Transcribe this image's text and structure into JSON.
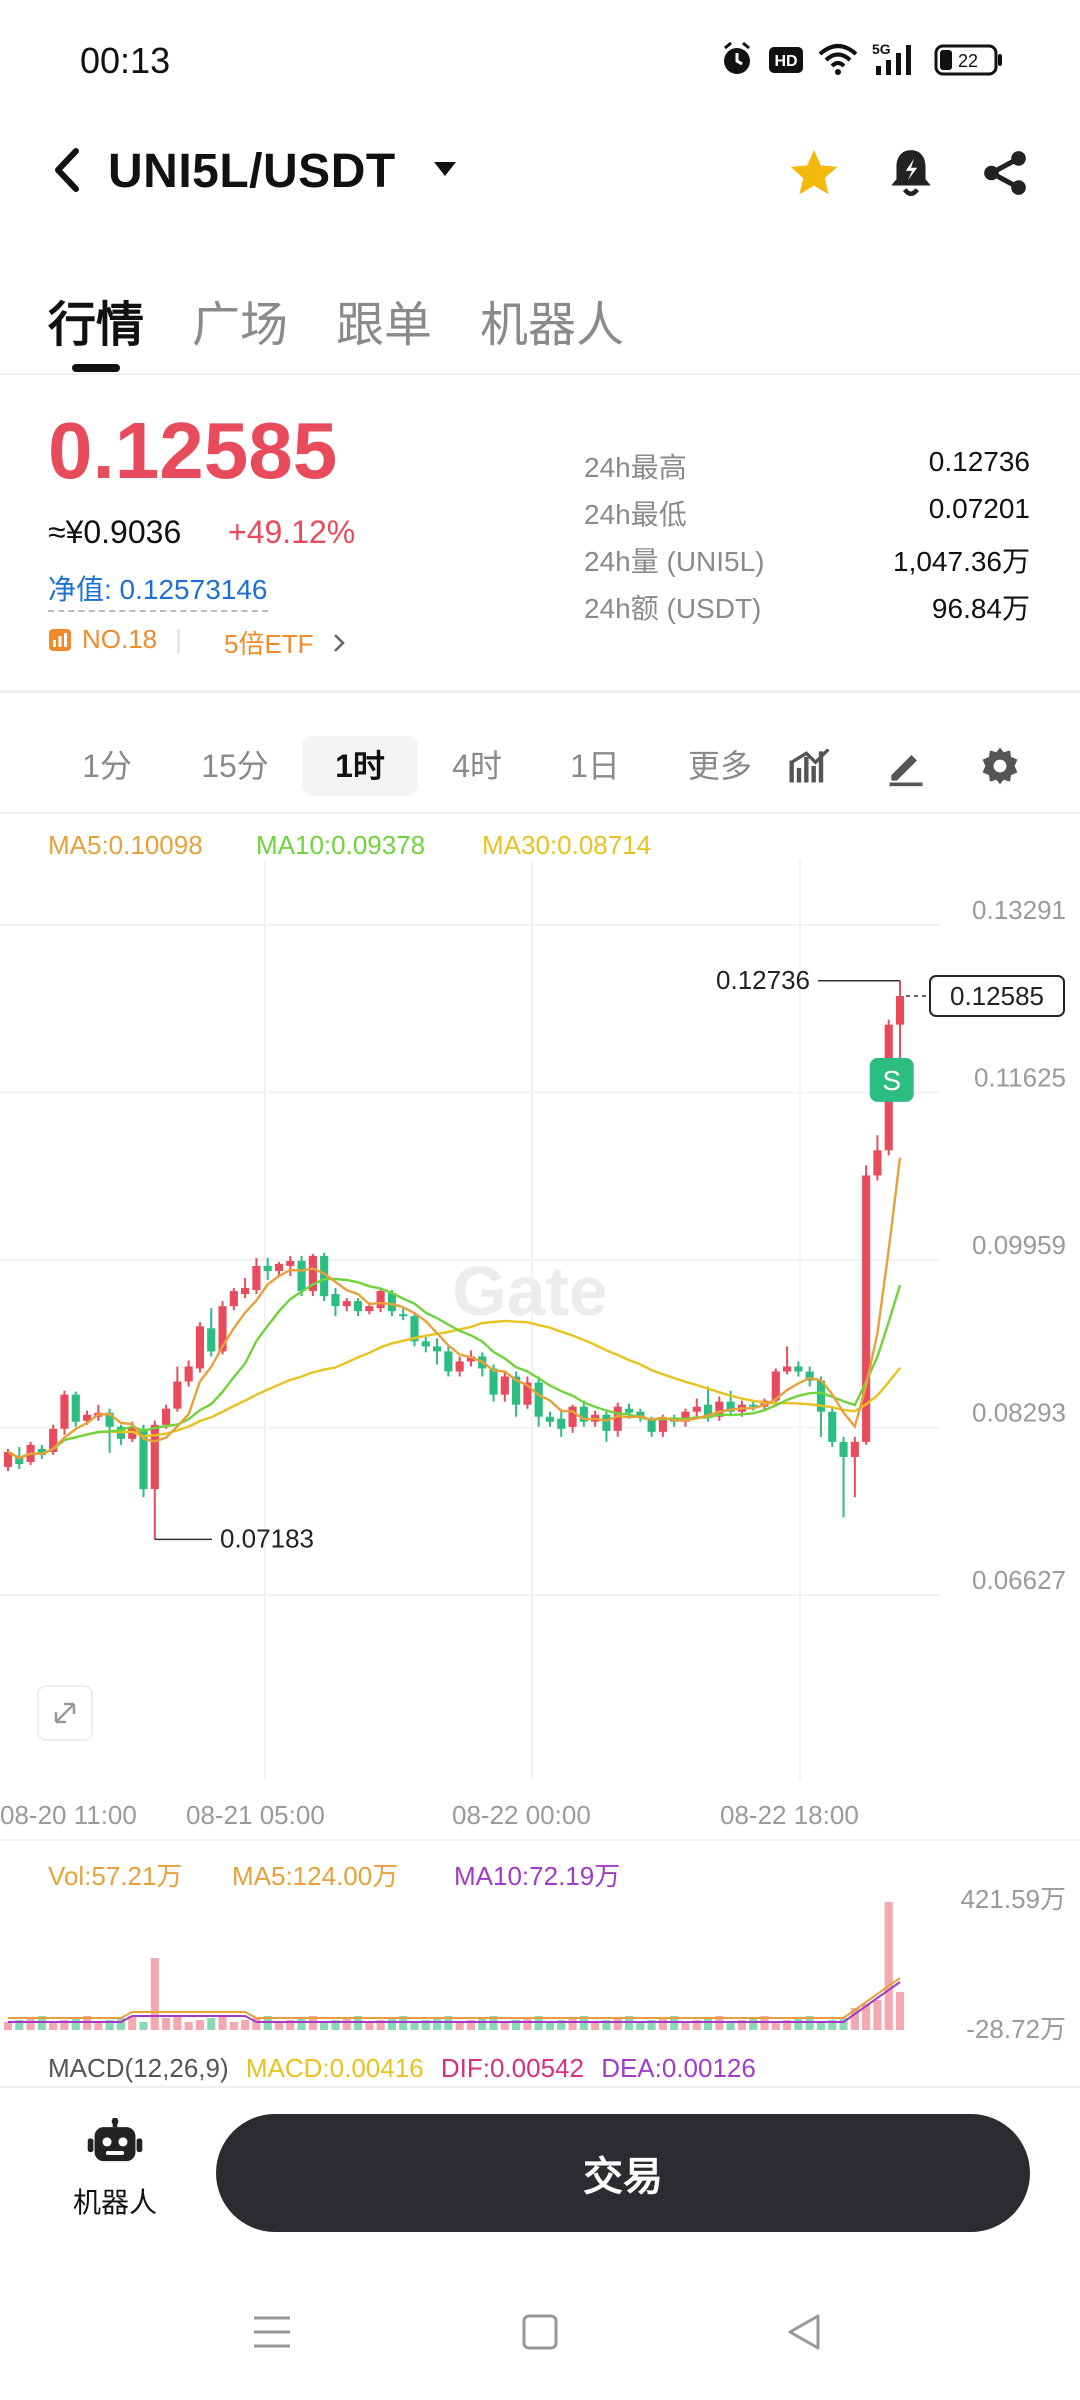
{
  "status_bar": {
    "time": "00:13",
    "battery": "22",
    "network": "5G"
  },
  "header": {
    "pair": "UNI5L/USDT"
  },
  "tabs": [
    {
      "label": "行情"
    },
    {
      "label": "广场"
    },
    {
      "label": "跟单"
    },
    {
      "label": "机器人"
    }
  ],
  "price": {
    "last": "0.12585",
    "cny": "≈¥0.9036",
    "change": "+49.12%",
    "nav": "净值: 0.12573146",
    "rank": "NO.18",
    "etf": "5倍ETF"
  },
  "stats": [
    {
      "label": "24h最高",
      "value": "0.12736"
    },
    {
      "label": "24h最低",
      "value": "0.07201"
    },
    {
      "label": "24h量 (UNI5L)",
      "value": "1,047.36万"
    },
    {
      "label": "24h额 (USDT)",
      "value": "96.84万"
    }
  ],
  "intervals": [
    {
      "label": "1分"
    },
    {
      "label": "15分"
    },
    {
      "label": "1时"
    },
    {
      "label": "4时"
    },
    {
      "label": "1日"
    },
    {
      "label": "更多"
    }
  ],
  "ma_legend": {
    "ma5": "MA5:0.10098",
    "ma10": "MA10:0.09378",
    "ma30": "MA30:0.08714"
  },
  "vol_legend": {
    "vol": "Vol:57.21万",
    "ma5": "MA5:124.00万",
    "ma10": "MA10:72.19万"
  },
  "macd_legend": {
    "title": "MACD(12,26,9)",
    "macd": "MACD:0.00416",
    "dif": "DIF:0.00542",
    "dea": "DEA:0.00126"
  },
  "colors": {
    "up": "#e84b5b",
    "down": "#2bbd82",
    "ma5": "#e8a13a",
    "ma10": "#6fd33b",
    "ma30": "#e8c21f",
    "vol_ma10": "#a23bc8",
    "accent": "#f5b90b"
  },
  "bottom": {
    "robot_label": "机器人",
    "trade_label": "交易"
  },
  "chart_data": {
    "type": "candlestick",
    "y_ticks": [
      "0.13291",
      "0.11625",
      "0.09959",
      "0.08293",
      "0.06627"
    ],
    "x_ticks": [
      "08-20 11:00",
      "08-21 05:00",
      "08-22 00:00",
      "08-22 18:00"
    ],
    "ylim": [
      0.06627,
      0.13291
    ],
    "high_label": "0.12736",
    "low_label": "0.07183",
    "last_label": "0.12585",
    "watermark": "Gate",
    "volume_axis": [
      "421.59万",
      "-28.72万"
    ],
    "candles": [
      [
        0.079,
        0.0805,
        0.0786,
        0.0808
      ],
      [
        0.08,
        0.0793,
        0.0788,
        0.081
      ],
      [
        0.0795,
        0.0812,
        0.0792,
        0.0815
      ],
      [
        0.0808,
        0.0802,
        0.0798,
        0.0812
      ],
      [
        0.0805,
        0.0828,
        0.0802,
        0.0832
      ],
      [
        0.0828,
        0.0862,
        0.0822,
        0.0866
      ],
      [
        0.0862,
        0.0835,
        0.083,
        0.0865
      ],
      [
        0.0836,
        0.0842,
        0.0832,
        0.0846
      ],
      [
        0.084,
        0.0844,
        0.0836,
        0.0852
      ],
      [
        0.0844,
        0.083,
        0.0804,
        0.0848
      ],
      [
        0.083,
        0.0818,
        0.0812,
        0.0832
      ],
      [
        0.0818,
        0.083,
        0.0815,
        0.0835
      ],
      [
        0.0828,
        0.0768,
        0.076,
        0.0832
      ],
      [
        0.0768,
        0.0832,
        0.0718,
        0.0836
      ],
      [
        0.0832,
        0.0848,
        0.0828,
        0.0852
      ],
      [
        0.0848,
        0.0875,
        0.0845,
        0.089
      ],
      [
        0.0875,
        0.089,
        0.087,
        0.0896
      ],
      [
        0.0888,
        0.093,
        0.0884,
        0.0934
      ],
      [
        0.0928,
        0.0905,
        0.09,
        0.0948
      ],
      [
        0.0905,
        0.095,
        0.0902,
        0.0955
      ],
      [
        0.095,
        0.0965,
        0.0946,
        0.0968
      ],
      [
        0.0962,
        0.0968,
        0.0958,
        0.0978
      ],
      [
        0.0966,
        0.099,
        0.0962,
        0.0998
      ],
      [
        0.099,
        0.0985,
        0.0976,
        0.0998
      ],
      [
        0.0985,
        0.0992,
        0.098,
        0.0994
      ],
      [
        0.099,
        0.0995,
        0.098,
        0.1
      ],
      [
        0.0995,
        0.0965,
        0.096,
        0.1
      ],
      [
        0.0965,
        0.1,
        0.096,
        0.1002
      ],
      [
        0.1,
        0.096,
        0.0955,
        0.1003
      ],
      [
        0.0962,
        0.095,
        0.094,
        0.0968
      ],
      [
        0.095,
        0.0955,
        0.0945,
        0.0958
      ],
      [
        0.0955,
        0.0945,
        0.094,
        0.0958
      ],
      [
        0.0945,
        0.095,
        0.0942,
        0.0954
      ],
      [
        0.0948,
        0.0965,
        0.0944,
        0.0968
      ],
      [
        0.0963,
        0.0945,
        0.094,
        0.0966
      ],
      [
        0.0942,
        0.094,
        0.0936,
        0.0948
      ],
      [
        0.094,
        0.0915,
        0.091,
        0.0944
      ],
      [
        0.0915,
        0.091,
        0.0904,
        0.092
      ],
      [
        0.091,
        0.0905,
        0.0892,
        0.0918
      ],
      [
        0.0905,
        0.0885,
        0.088,
        0.091
      ],
      [
        0.0885,
        0.0895,
        0.088,
        0.09
      ],
      [
        0.0895,
        0.09,
        0.089,
        0.0906
      ],
      [
        0.09,
        0.0888,
        0.088,
        0.0904
      ],
      [
        0.0888,
        0.0862,
        0.0855,
        0.0892
      ],
      [
        0.0862,
        0.088,
        0.0855,
        0.0886
      ],
      [
        0.088,
        0.0852,
        0.084,
        0.0885
      ],
      [
        0.0852,
        0.0874,
        0.0848,
        0.088
      ],
      [
        0.0874,
        0.084,
        0.083,
        0.088
      ],
      [
        0.084,
        0.0835,
        0.083,
        0.0845
      ],
      [
        0.0838,
        0.0828,
        0.082,
        0.0848
      ],
      [
        0.083,
        0.085,
        0.0824,
        0.0852
      ],
      [
        0.085,
        0.0835,
        0.083,
        0.0856
      ],
      [
        0.0835,
        0.0842,
        0.083,
        0.0846
      ],
      [
        0.0842,
        0.0826,
        0.0815,
        0.0846
      ],
      [
        0.0826,
        0.085,
        0.082,
        0.0854
      ],
      [
        0.0848,
        0.0844,
        0.0838,
        0.0853
      ],
      [
        0.0845,
        0.084,
        0.0835,
        0.0848
      ],
      [
        0.0838,
        0.0825,
        0.082,
        0.084
      ],
      [
        0.0825,
        0.0837,
        0.082,
        0.0842
      ],
      [
        0.0837,
        0.0835,
        0.083,
        0.0842
      ],
      [
        0.0835,
        0.0845,
        0.083,
        0.0848
      ],
      [
        0.0845,
        0.085,
        0.084,
        0.0858
      ],
      [
        0.0852,
        0.084,
        0.0835,
        0.087
      ],
      [
        0.084,
        0.0855,
        0.0836,
        0.086
      ],
      [
        0.0855,
        0.0845,
        0.0842,
        0.0866
      ],
      [
        0.0845,
        0.0852,
        0.084,
        0.0856
      ],
      [
        0.0852,
        0.085,
        0.0846,
        0.0855
      ],
      [
        0.085,
        0.0856,
        0.0846,
        0.0858
      ],
      [
        0.0856,
        0.0885,
        0.0852,
        0.0888
      ],
      [
        0.0885,
        0.089,
        0.0882,
        0.091
      ],
      [
        0.089,
        0.0885,
        0.088,
        0.0895
      ],
      [
        0.0885,
        0.0876,
        0.087,
        0.089
      ],
      [
        0.0876,
        0.0845,
        0.082,
        0.088
      ],
      [
        0.0845,
        0.0815,
        0.081,
        0.085
      ],
      [
        0.0815,
        0.08,
        0.074,
        0.082
      ],
      [
        0.08,
        0.0815,
        0.076,
        0.082
      ],
      [
        0.0815,
        0.108,
        0.0812,
        0.109
      ],
      [
        0.108,
        0.1105,
        0.1075,
        0.112
      ],
      [
        0.1105,
        0.123,
        0.11,
        0.1235
      ],
      [
        0.123,
        0.12585,
        0.116,
        0.12736
      ]
    ]
  }
}
